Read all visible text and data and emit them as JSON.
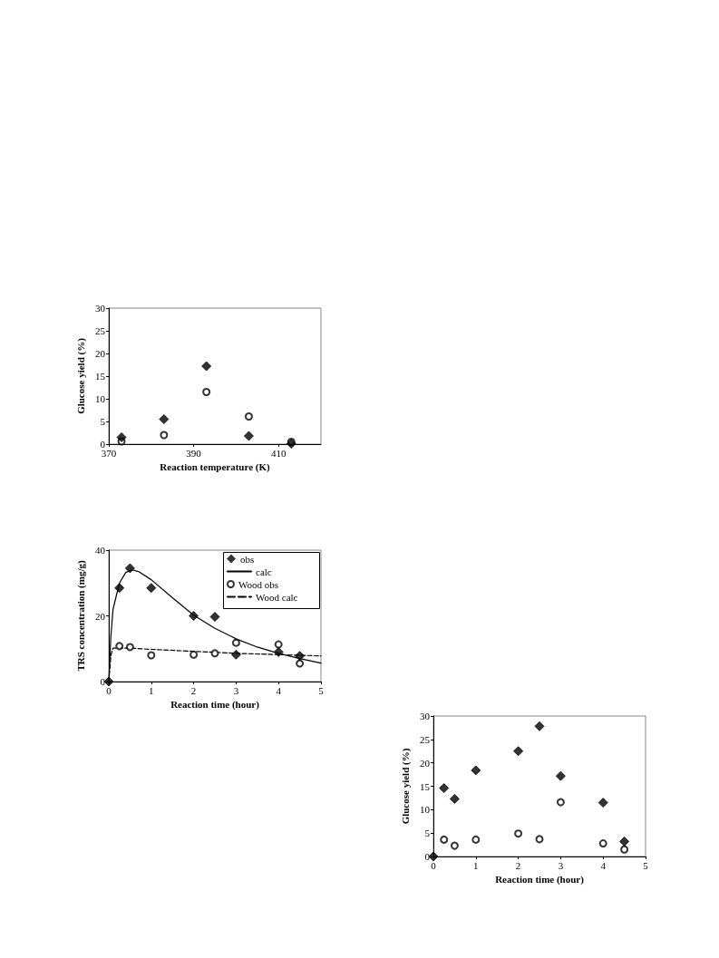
{
  "chart_data": [
    {
      "type": "scatter",
      "xlabel": "Reaction temperature (K)",
      "ylabel": "Glucose yield (%)",
      "xlim": [
        370,
        420
      ],
      "xticks": [
        370,
        390,
        410
      ],
      "ylim": [
        0,
        30
      ],
      "yticks": [
        0,
        5,
        10,
        15,
        20,
        25,
        30
      ],
      "grid": false,
      "legend": false,
      "series": [
        {
          "color": "#000000",
          "marker": "diamond",
          "x": [
            373,
            383,
            393,
            403,
            413
          ],
          "values": [
            1.5,
            5.5,
            17.2,
            1.8,
            0.1
          ]
        },
        {
          "color": "#000000",
          "marker": "circle",
          "x": [
            373,
            383,
            393,
            403,
            413
          ],
          "values": [
            0.6,
            2.0,
            11.5,
            6.1,
            0.5
          ]
        }
      ]
    },
    {
      "type": "scatter",
      "xlabel": "Reaction time (hour)",
      "ylabel": "TRS concentration (mg/g)",
      "xlim": [
        0,
        5
      ],
      "xticks": [
        0,
        1,
        2,
        3,
        4,
        5
      ],
      "ylim": [
        0,
        40
      ],
      "yticks": [
        0,
        20,
        40
      ],
      "grid": false,
      "legend": "top right",
      "series": [
        {
          "name": "obs",
          "color": "#000000",
          "marker": "diamond",
          "x": [
            0,
            0.25,
            0.5,
            1,
            2,
            2.5,
            3,
            4,
            4.5
          ],
          "values": [
            0,
            28.5,
            34.5,
            28.5,
            20,
            19.7,
            8.2,
            9,
            7.8
          ]
        },
        {
          "name": "calc",
          "type": "line",
          "color": "#000000",
          "marker": "none",
          "line_style": "solid",
          "x": [
            0,
            0.05,
            0.1,
            0.25,
            0.4,
            0.55,
            0.7,
            1,
            1.5,
            2,
            2.5,
            3,
            3.5,
            4,
            4.5,
            5
          ],
          "values": [
            0,
            14,
            22,
            30,
            33.2,
            34,
            33.5,
            31,
            25.5,
            20.2,
            16.2,
            13,
            10.5,
            8.6,
            7,
            5.6
          ]
        },
        {
          "name": "Wood obs",
          "color": "#000000",
          "marker": "circle",
          "x": [
            0.25,
            0.5,
            1,
            2,
            2.5,
            3,
            4,
            4.5
          ],
          "values": [
            10.8,
            10.5,
            8,
            8.2,
            8.6,
            11.8,
            11.3,
            5.5
          ]
        },
        {
          "name": "Wood calc",
          "type": "line",
          "color": "#000000",
          "marker": "none",
          "line_style": "dashed",
          "x": [
            0,
            0.05,
            0.1,
            0.5,
            1,
            2,
            3,
            4,
            5
          ],
          "values": [
            0,
            8,
            10.2,
            10.2,
            9.8,
            9.2,
            8.6,
            8.2,
            7.8
          ]
        }
      ]
    },
    {
      "type": "scatter",
      "xlabel": "Reaction time (hour)",
      "ylabel": "Glucose yield (%)",
      "xlim": [
        0,
        5
      ],
      "xticks": [
        0,
        1,
        2,
        3,
        4,
        5
      ],
      "ylim": [
        0,
        30
      ],
      "yticks": [
        0,
        5,
        10,
        15,
        20,
        25,
        30
      ],
      "grid": false,
      "legend": false,
      "series": [
        {
          "color": "#000000",
          "marker": "diamond",
          "x": [
            0,
            0.25,
            0.5,
            1,
            2,
            2.5,
            3,
            4,
            4.5
          ],
          "values": [
            0,
            14.6,
            12.3,
            18.4,
            22.5,
            27.8,
            17.2,
            11.5,
            3.2
          ]
        },
        {
          "color": "#000000",
          "marker": "circle",
          "x": [
            0.25,
            0.5,
            1,
            2,
            2.5,
            3,
            4,
            4.5
          ],
          "values": [
            3.6,
            2.3,
            3.6,
            4.9,
            3.7,
            11.6,
            2.8,
            1.5
          ]
        }
      ]
    }
  ]
}
